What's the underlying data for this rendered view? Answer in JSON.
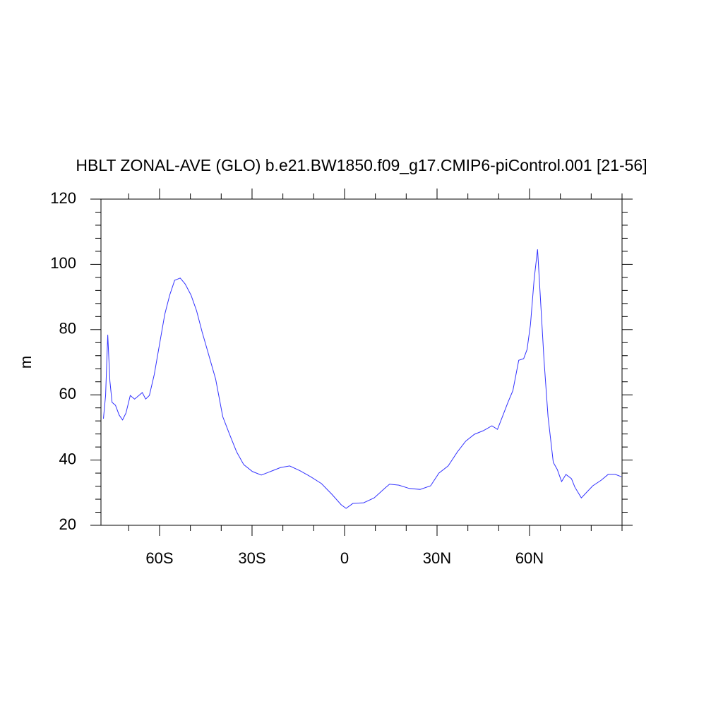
{
  "chart_data": {
    "type": "line",
    "title": "HBLT ZONAL-AVE (GLO) b.e21.BW1850.f09_g17.CMIP6-piControl.001 [21-56]",
    "y_label": "m",
    "xlim": [
      -79,
      90
    ],
    "xticks": [
      {
        "value": -60,
        "label": "60S"
      },
      {
        "value": -30,
        "label": "30S"
      },
      0,
      {
        "value": 30,
        "label": "30N"
      },
      {
        "value": 60,
        "label": "60N"
      }
    ],
    "ylim": [
      20,
      120
    ],
    "yticks": [
      20,
      40,
      60,
      80,
      100,
      120
    ],
    "grid": false,
    "series": [
      {
        "name": "HBLT",
        "color": "#3333ff",
        "x": [
          -78.2,
          -77.5,
          -76.8,
          -76.1,
          -75.4,
          -74.3,
          -73.1,
          -72,
          -70.9,
          -69.5,
          -68.1,
          -66.7,
          -65.6,
          -64.5,
          -63.3,
          -61.7,
          -60.1,
          -58.3,
          -56.7,
          -55.1,
          -53.3,
          -51.7,
          -49.8,
          -48,
          -46.2,
          -44.1,
          -41.8,
          -39.5,
          -37.3,
          -35,
          -32.7,
          -29.9,
          -27,
          -24,
          -20.8,
          -17.8,
          -14.4,
          -11,
          -7.5,
          -4.1,
          -1.1,
          0.5,
          2.7,
          6.2,
          9.6,
          13,
          14.6,
          17.6,
          21,
          24.5,
          27.9,
          30.6,
          33.6,
          36.6,
          39.3,
          42.1,
          45,
          47.8,
          49.6,
          51.2,
          53,
          54.6,
          56.5,
          58.1,
          59.2,
          60.3,
          61.5,
          62.6,
          63.5,
          64.7,
          66,
          67.7,
          69,
          70.4,
          71.8,
          73.6,
          74.7,
          76.8,
          78.6,
          80.5,
          83.2,
          85.5,
          87.8,
          89.8
        ],
        "values": [
          52.7,
          59.8,
          78.4,
          64.2,
          57.7,
          56.8,
          53.8,
          52.3,
          54.4,
          59.8,
          58.7,
          59.8,
          60.7,
          58.7,
          59.8,
          66.3,
          75,
          84.7,
          90.6,
          95.1,
          95.8,
          94,
          90.6,
          85.8,
          79.3,
          72.4,
          64.8,
          53.3,
          47.9,
          42.5,
          38.6,
          36.5,
          35.4,
          36.5,
          37.7,
          38.2,
          36.7,
          34.9,
          32.8,
          29.5,
          26.3,
          25.2,
          26.7,
          26.9,
          28.4,
          31.3,
          32.6,
          32.3,
          31.3,
          31,
          32.1,
          36,
          38.2,
          42.5,
          45.8,
          47.9,
          49,
          50.5,
          49.4,
          53.3,
          57.7,
          61.3,
          70.6,
          71.1,
          73.9,
          81.5,
          95.5,
          104.6,
          90.1,
          70.6,
          53.3,
          39.3,
          37.1,
          33.4,
          35.6,
          34.3,
          31.7,
          28.4,
          30.2,
          32.1,
          33.8,
          35.6,
          35.6,
          34.9
        ]
      }
    ]
  }
}
